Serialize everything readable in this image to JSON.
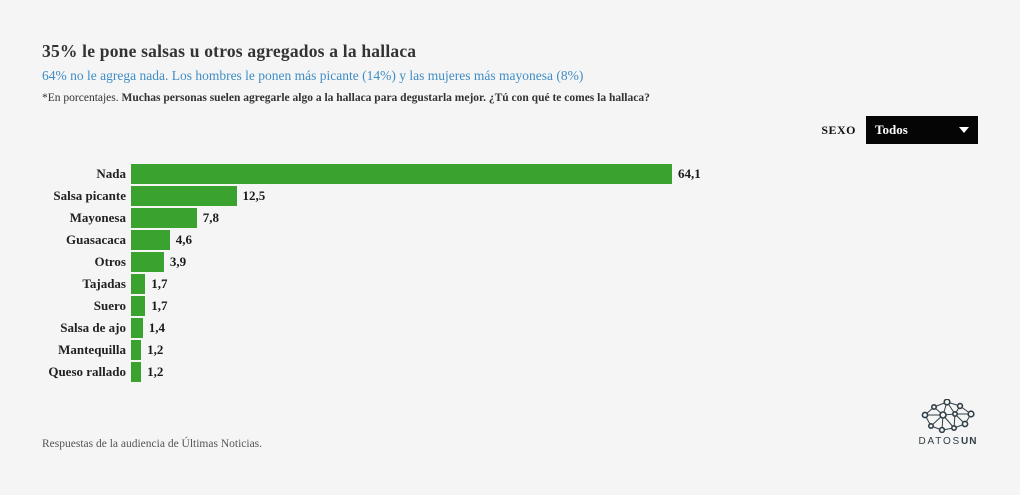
{
  "header": {
    "title": "35% le pone salsas u otros agregados a la hallaca",
    "subtitle": "64% no le agrega nada. Los hombres le ponen más picante (14%) y las mujeres más mayonesa (8%)",
    "note_prefix": "*En porcentajes. ",
    "note_bold": "Muchas personas suelen agregarle algo a la hallaca para degustarla mejor. ¿Tú con qué te comes la hallaca?"
  },
  "filter": {
    "label": "SEXO",
    "selected_option": "Todos",
    "icon": "caret-down-icon"
  },
  "chart_data": {
    "type": "bar",
    "orientation": "horizontal",
    "categories": [
      "Nada",
      "Salsa picante",
      "Mayonesa",
      "Guasacaca",
      "Otros",
      "Tajadas",
      "Suero",
      "Salsa de ajo",
      "Mantequilla",
      "Queso rallado"
    ],
    "values": [
      64.1,
      12.5,
      7.8,
      4.6,
      3.9,
      1.7,
      1.7,
      1.4,
      1.2,
      1.2
    ],
    "value_labels": [
      "64,1",
      "12,5",
      "7,8",
      "4,6",
      "3,9",
      "1,7",
      "1,7",
      "1,4",
      "1,2",
      "1,2"
    ],
    "unit": "percent",
    "xlim": [
      0,
      64.1
    ],
    "grid": false,
    "legend": "none",
    "bar_color": "#3aa32f"
  },
  "footer": {
    "source": "Respuestas de la audiencia de Últimas Noticias.",
    "logo_light": "DATOS",
    "logo_bold": "UN"
  },
  "colors": {
    "background": "#f5f5f5",
    "title": "#333333",
    "subtitle": "#3f8dc6",
    "bar": "#3aa32f",
    "dropdown_bg": "#050505",
    "dropdown_text": "#ffffff",
    "logo": "#2f3e46"
  }
}
